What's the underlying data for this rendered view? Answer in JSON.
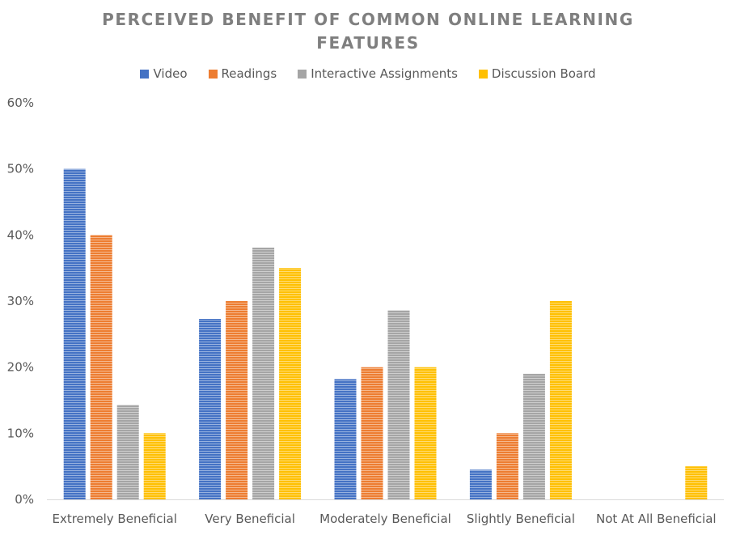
{
  "title_line1": "PERCEIVED BENEFIT OF COMMON ONLINE LEARNING",
  "title_line2": "FEATURES",
  "chart_data": {
    "type": "bar",
    "title": "PERCEIVED BENEFIT OF COMMON ONLINE LEARNING FEATURES",
    "categories": [
      "Extremely Beneficial",
      "Very Beneficial",
      "Moderately Beneficial",
      "Slightly Beneficial",
      "Not At All Beneficial"
    ],
    "series": [
      {
        "name": "Video",
        "color": "#4472c4",
        "values": [
          50,
          27.3,
          18.2,
          4.5,
          0
        ]
      },
      {
        "name": "Readings",
        "color": "#ed7d31",
        "values": [
          40,
          30,
          20,
          10,
          0
        ]
      },
      {
        "name": "Interactive Assignments",
        "color": "#a5a5a5",
        "values": [
          14.3,
          38.1,
          28.6,
          19,
          0
        ]
      },
      {
        "name": "Discussion Board",
        "color": "#ffc000",
        "values": [
          10,
          35,
          20,
          30,
          5
        ]
      }
    ],
    "ylim": [
      0,
      60
    ],
    "yticks": [
      "0%",
      "10%",
      "20%",
      "30%",
      "40%",
      "50%",
      "60%"
    ],
    "ytick_values": [
      0,
      10,
      20,
      30,
      40,
      50,
      60
    ],
    "xlabel": "",
    "ylabel": "",
    "grid": false,
    "legend": "top"
  }
}
